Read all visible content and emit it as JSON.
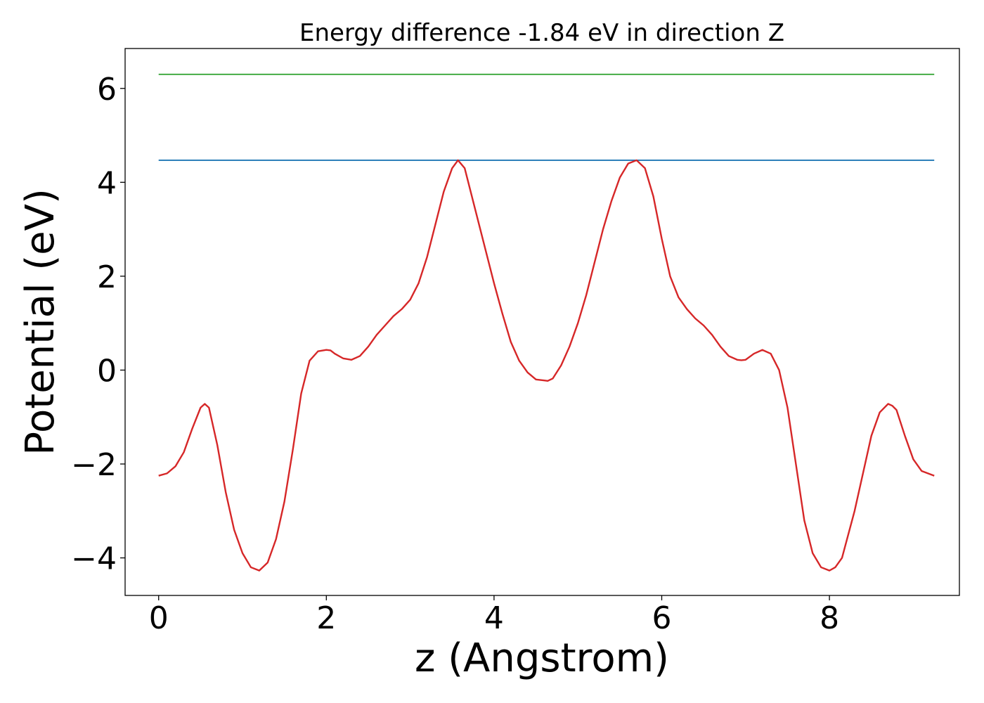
{
  "chart_data": {
    "type": "line",
    "title": "Energy difference -1.84 eV in direction Z",
    "xlabel": "z (Angstrom)",
    "ylabel": "Potential (eV)",
    "xlim": [
      -0.4,
      9.55
    ],
    "ylim": [
      -4.8,
      6.85
    ],
    "xticks": [
      0,
      2,
      4,
      6,
      8
    ],
    "yticks": [
      -4,
      -2,
      0,
      2,
      4,
      6
    ],
    "xtick_labels": [
      "0",
      "2",
      "4",
      "6",
      "8"
    ],
    "ytick_labels": [
      "−4",
      "−2",
      "0",
      "2",
      "4",
      "6"
    ],
    "grid": false,
    "legend": "none",
    "series": [
      {
        "color": "#2ca02c",
        "x": [
          0,
          9.25
        ],
        "y": [
          6.3,
          6.3
        ]
      },
      {
        "color": "#1f77b4",
        "x": [
          0,
          9.25
        ],
        "y": [
          4.47,
          4.47
        ]
      },
      {
        "color": "#d62728",
        "x": [
          0,
          0.1,
          0.2,
          0.3,
          0.4,
          0.5,
          0.55,
          0.6,
          0.7,
          0.8,
          0.9,
          1.0,
          1.1,
          1.2,
          1.3,
          1.4,
          1.5,
          1.6,
          1.7,
          1.8,
          1.9,
          2.0,
          2.05,
          2.1,
          2.2,
          2.3,
          2.4,
          2.5,
          2.6,
          2.7,
          2.8,
          2.9,
          3.0,
          3.1,
          3.2,
          3.3,
          3.4,
          3.5,
          3.57,
          3.65,
          3.75,
          3.85,
          4.0,
          4.1,
          4.2,
          4.3,
          4.4,
          4.5,
          4.6,
          4.64,
          4.7,
          4.8,
          4.9,
          5.0,
          5.1,
          5.2,
          5.3,
          5.4,
          5.5,
          5.6,
          5.7,
          5.8,
          5.9,
          6.0,
          6.1,
          6.2,
          6.3,
          6.4,
          6.5,
          6.6,
          6.7,
          6.8,
          6.9,
          6.95,
          7.0,
          7.1,
          7.2,
          7.3,
          7.4,
          7.5,
          7.6,
          7.7,
          7.8,
          7.9,
          8.0,
          8.07,
          8.15,
          8.3,
          8.4,
          8.5,
          8.6,
          8.7,
          8.75,
          8.8,
          8.9,
          9.0,
          9.1,
          9.25
        ],
        "y": [
          -2.25,
          -2.2,
          -2.05,
          -1.75,
          -1.25,
          -0.8,
          -0.72,
          -0.8,
          -1.6,
          -2.6,
          -3.4,
          -3.9,
          -4.2,
          -4.27,
          -4.1,
          -3.6,
          -2.8,
          -1.7,
          -0.5,
          0.2,
          0.4,
          0.43,
          0.42,
          0.35,
          0.25,
          0.22,
          0.3,
          0.5,
          0.75,
          0.95,
          1.15,
          1.3,
          1.5,
          1.85,
          2.4,
          3.1,
          3.8,
          4.3,
          4.47,
          4.3,
          3.6,
          2.9,
          1.85,
          1.2,
          0.6,
          0.2,
          -0.05,
          -0.2,
          -0.22,
          -0.23,
          -0.18,
          0.1,
          0.5,
          1.0,
          1.6,
          2.3,
          3.0,
          3.6,
          4.1,
          4.4,
          4.47,
          4.3,
          3.7,
          2.8,
          2.0,
          1.55,
          1.3,
          1.1,
          0.95,
          0.75,
          0.5,
          0.3,
          0.22,
          0.21,
          0.22,
          0.35,
          0.43,
          0.35,
          0.0,
          -0.8,
          -2.0,
          -3.2,
          -3.9,
          -4.2,
          -4.27,
          -4.2,
          -4.0,
          -3.0,
          -2.2,
          -1.4,
          -0.9,
          -0.72,
          -0.76,
          -0.85,
          -1.4,
          -1.9,
          -2.15,
          -2.25
        ]
      }
    ]
  }
}
